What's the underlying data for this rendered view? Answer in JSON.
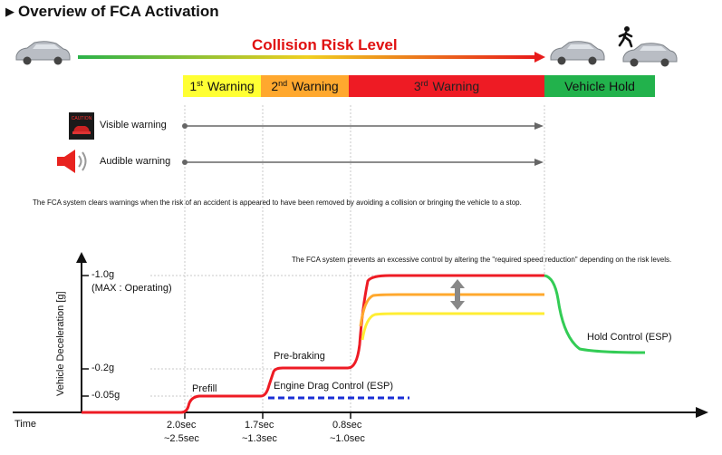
{
  "title": "Overview of FCA Activation",
  "risk_label": "Collision Risk Level",
  "warnings": [
    {
      "num": "1",
      "sup": "st",
      "text": "Warning",
      "color": "#ffff33"
    },
    {
      "num": "2",
      "sup": "nd",
      "text": "Warning",
      "color": "#ffa82e"
    },
    {
      "num": "3",
      "sup": "rd",
      "text": "Warning",
      "color": "#ee1b24"
    },
    {
      "num": "",
      "sup": "",
      "text": "Vehicle Hold",
      "color": "#22b24c"
    }
  ],
  "visible_warning": "Visible warning",
  "audible_warning": "Audible warning",
  "caution_text": "CAUTION",
  "note1": "The FCA system clears warnings when the risk of an accident is appeared to have been removed by avoiding a collision or bringing the vehicle to a stop.",
  "note2": "The FCA system prevents an excessive control by altering the \"required speed reduction\" depending on the risk levels.",
  "y_axis_label": "Vehicle Deceleration [g]",
  "y_ticks": {
    "max": "-1.0g",
    "max_sub": "(MAX : Operating)",
    "mid": "-0.2g",
    "low": "-0.05g"
  },
  "phases": {
    "prefill": "Prefill",
    "prebraking": "Pre-braking",
    "engine_drag": "Engine Drag Control (ESP)",
    "hold": "Hold Control (ESP)"
  },
  "time_label": "Time",
  "times": [
    {
      "a": "2.0sec",
      "b": "~2.5sec"
    },
    {
      "a": "1.7sec",
      "b": "~1.3sec"
    },
    {
      "a": "0.8sec",
      "b": "~1.0sec"
    }
  ],
  "colors": {
    "red": "#ee1b24",
    "orange": "#ffa82e",
    "yellow": "#ffee33",
    "green": "#33cc55",
    "blue": "#1a2fd6"
  }
}
